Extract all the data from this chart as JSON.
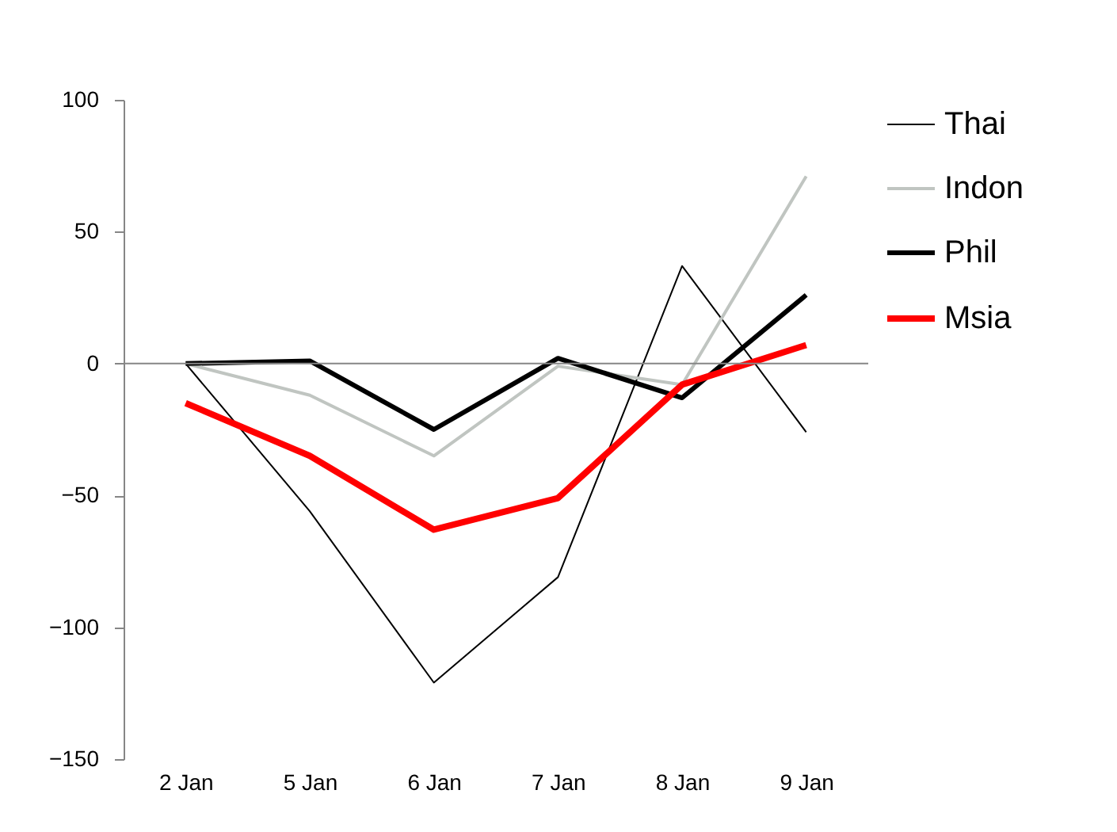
{
  "chart_data": {
    "type": "line",
    "categories": [
      "2 Jan",
      "5 Jan",
      "6 Jan",
      "7 Jan",
      "8 Jan",
      "9 Jan"
    ],
    "series": [
      {
        "name": "Thai",
        "color": "#000000",
        "values": [
          0,
          -56,
          -121,
          -81,
          37,
          -26
        ]
      },
      {
        "name": "Indon",
        "color": "#c0c5c1",
        "values": [
          0,
          -12,
          -35,
          -1,
          -8,
          71
        ]
      },
      {
        "name": "Phil",
        "color": "#000000",
        "values": [
          0,
          1,
          -25,
          2,
          -13,
          26
        ]
      },
      {
        "name": "Msia",
        "color": "#ff0000",
        "values": [
          -15,
          -35,
          -63,
          -51,
          -8,
          7
        ]
      }
    ],
    "ylim": [
      -150,
      100
    ],
    "yticks": [
      -150,
      -100,
      -50,
      0,
      50,
      100
    ],
    "legend": "right",
    "ref_lines": [
      {
        "axis": "y",
        "value": 0,
        "color": "#868686"
      }
    ]
  }
}
